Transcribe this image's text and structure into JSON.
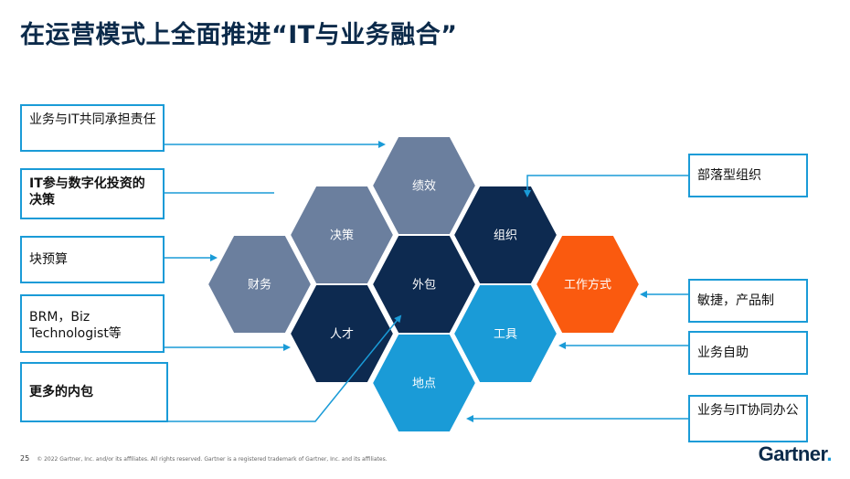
{
  "slide": {
    "title_bold": "在运营模式上全面推进",
    "title_quote": "“IT与业务融合”",
    "page_number": "25",
    "footer": "© 2022 Gartner, Inc. and/or its affiliates. All rights reserved. Gartner is a registered trademark of Gartner, Inc. and its affiliates.",
    "logo_text": "Gartner",
    "logo_dot": "."
  },
  "left_boxes": [
    {
      "label": "业务与IT共同承担责任"
    },
    {
      "label": "IT参与数字化投资的决策"
    },
    {
      "label": "块预算"
    },
    {
      "label": "BRM，Biz Technologist等"
    },
    {
      "label": "更多的内包"
    }
  ],
  "right_boxes": [
    {
      "label": "部落型组织"
    },
    {
      "label": "敏捷，产品制"
    },
    {
      "label": "业务自助"
    },
    {
      "label": "业务与IT协同办公"
    }
  ],
  "hexagons": [
    {
      "label": "财务",
      "color": "#6b7f9e"
    },
    {
      "label": "决策",
      "color": "#6b7f9e"
    },
    {
      "label": "绩效",
      "color": "#6b7f9e"
    },
    {
      "label": "外包",
      "color": "#0d2a50"
    },
    {
      "label": "组织",
      "color": "#0d2a50"
    },
    {
      "label": "人才",
      "color": "#0d2a50"
    },
    {
      "label": "工作方式",
      "color": "#fa5a0f"
    },
    {
      "label": "工具",
      "color": "#1a9bd7"
    },
    {
      "label": "地点",
      "color": "#1a9bd7"
    }
  ],
  "colors": {
    "accent_blue": "#1a9bd7",
    "navy": "#0d2a50",
    "slate": "#6b7f9e",
    "orange": "#fa5a0f"
  }
}
